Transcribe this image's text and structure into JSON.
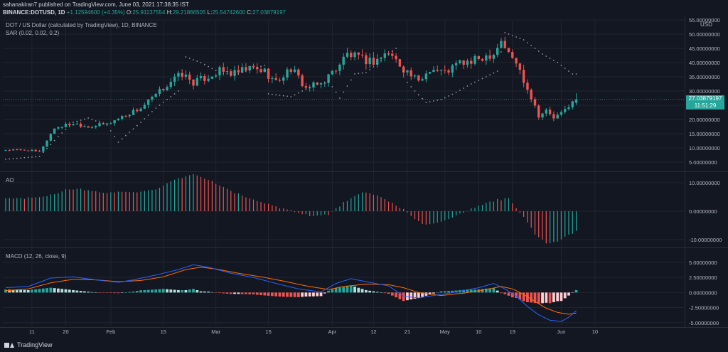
{
  "header": {
    "author_line": "sahanakiran7 published on TradingView.com, June 03, 2021 17:38:35 IST",
    "symbol": "BINANCE:DOTUSD, 1D",
    "change": "+1.12594600 (+4.35%)",
    "open_label": "O:",
    "open": "25.91137554",
    "high_label": "H:",
    "high": "29.21866505",
    "low_label": "L:",
    "low": "25.54742600",
    "close_label": "C:",
    "close": "27.03879197"
  },
  "panes": {
    "main_title": "DOT / US Dollar (calculated by TradingView), 1D, BINANCE",
    "sar_label": "SAR (0.02, 0.02, 0.2)",
    "ao_label": "AO",
    "macd_label": "MACD (12, 26, close, 9)",
    "currency": "USD"
  },
  "last_price": {
    "value": "27.03879197",
    "countdown": "11:51:29"
  },
  "brand": "TradingView",
  "colors": {
    "up": "#26a69a",
    "down": "#ef5350",
    "macd": "#2962ff",
    "signal": "#ff6d00",
    "background": "#131722",
    "grid": "#1f2430"
  },
  "chart_data": [
    {
      "type": "candlestick",
      "title": "DOT / US Dollar (calculated by TradingView), 1D, BINANCE",
      "ylim": [
        2.5,
        55
      ],
      "y_ticks": [
        5,
        10,
        15,
        20,
        25,
        30,
        35,
        40,
        45,
        50,
        55
      ],
      "y_tick_labels": [
        "5.00000000",
        "10.00000000",
        "15.00000000",
        "20.00000000",
        "25.00000000",
        "30.00000000",
        "35.00000000",
        "40.00000000",
        "45.00000000",
        "50.00000000",
        "55.00000000"
      ],
      "x_tick_labels": [
        "11",
        "20",
        "Feb",
        "15",
        "Mar",
        "15",
        "Apr",
        "12",
        "21",
        "May",
        "10",
        "19",
        "Jun",
        "10"
      ],
      "x_tick_days": [
        7,
        16,
        28,
        42,
        56,
        70,
        87,
        98,
        107,
        117,
        126,
        135,
        148,
        157
      ],
      "close_path": [
        [
          0,
          9.3
        ],
        [
          6,
          9.2
        ],
        [
          9,
          8.5
        ],
        [
          13,
          17
        ],
        [
          18,
          18.7
        ],
        [
          22,
          17.5
        ],
        [
          27,
          18.4
        ],
        [
          31,
          21
        ],
        [
          36,
          24
        ],
        [
          40,
          28.5
        ],
        [
          44,
          33.5
        ],
        [
          47,
          36
        ],
        [
          50,
          33
        ],
        [
          53,
          34.5
        ],
        [
          57,
          37
        ],
        [
          61,
          36
        ],
        [
          65,
          38
        ],
        [
          69,
          37
        ],
        [
          72,
          33
        ],
        [
          76,
          38
        ],
        [
          80,
          31
        ],
        [
          84,
          32.5
        ],
        [
          88,
          38
        ],
        [
          91,
          43
        ],
        [
          95,
          41
        ],
        [
          98,
          40.5
        ],
        [
          102,
          43.5
        ],
        [
          106,
          38
        ],
        [
          110,
          33
        ],
        [
          113,
          38
        ],
        [
          117,
          36.5
        ],
        [
          121,
          40
        ],
        [
          124,
          40
        ],
        [
          127,
          42
        ],
        [
          130,
          43.5
        ],
        [
          132,
          48
        ],
        [
          134,
          43
        ],
        [
          136,
          40
        ],
        [
          138,
          34
        ],
        [
          140,
          28
        ],
        [
          142,
          21.5
        ],
        [
          144,
          23
        ],
        [
          146,
          20.5
        ],
        [
          148,
          22
        ],
        [
          150,
          25
        ],
        [
          152,
          27.04
        ]
      ],
      "sar_path": [
        [
          0,
          6
        ],
        [
          9,
          7
        ],
        [
          14,
          14
        ],
        [
          18,
          19
        ],
        [
          22,
          20.5
        ],
        [
          27,
          18
        ],
        [
          30,
          12
        ],
        [
          36,
          19
        ],
        [
          40,
          24
        ],
        [
          46,
          30
        ],
        [
          48,
          42
        ],
        [
          52,
          40
        ],
        [
          57,
          36.5
        ],
        [
          61,
          35.5
        ],
        [
          66,
          38
        ],
        [
          69,
          39
        ],
        [
          70,
          29
        ],
        [
          76,
          28
        ],
        [
          82,
          32
        ],
        [
          86,
          33.5
        ],
        [
          89,
          27.5
        ],
        [
          93,
          36
        ],
        [
          96,
          36.5
        ],
        [
          98,
          38.5
        ],
        [
          104,
          45
        ],
        [
          107,
          33
        ],
        [
          109,
          30
        ],
        [
          112,
          26
        ],
        [
          116,
          27
        ],
        [
          120,
          29.5
        ],
        [
          124,
          32.5
        ],
        [
          128,
          35
        ],
        [
          131,
          37
        ],
        [
          133,
          50.5
        ],
        [
          138,
          48
        ],
        [
          143,
          43
        ],
        [
          147,
          40
        ],
        [
          151,
          36
        ]
      ],
      "last_price_label": "27.03879197",
      "countdown": "11:51:29"
    },
    {
      "type": "bar",
      "title": "AO",
      "ylim": [
        -12,
        13
      ],
      "y_ticks": [
        10,
        0,
        -10
      ],
      "y_tick_labels": [
        "10.00000000",
        "0.00000000",
        "-10.00000000"
      ],
      "path": [
        [
          0,
          4.5
        ],
        [
          8,
          4.7
        ],
        [
          12,
          5.8
        ],
        [
          16,
          7.5
        ],
        [
          20,
          7.7
        ],
        [
          24,
          6.8
        ],
        [
          28,
          6.5
        ],
        [
          32,
          7
        ],
        [
          36,
          6.8
        ],
        [
          40,
          7.4
        ],
        [
          45,
          11
        ],
        [
          50,
          13
        ],
        [
          55,
          10.5
        ],
        [
          60,
          7
        ],
        [
          66,
          4
        ],
        [
          71,
          2
        ],
        [
          76,
          0.2
        ],
        [
          82,
          -1.8
        ],
        [
          86,
          -1.2
        ],
        [
          90,
          3
        ],
        [
          95,
          6.5
        ],
        [
          98,
          6
        ],
        [
          103,
          3
        ],
        [
          106,
          0.5
        ],
        [
          109,
          -3
        ],
        [
          112,
          -5
        ],
        [
          116,
          -3.5
        ],
        [
          119,
          -2
        ],
        [
          123,
          0.2
        ],
        [
          127,
          2.3
        ],
        [
          131,
          4
        ],
        [
          134,
          4.4
        ],
        [
          136,
          1
        ],
        [
          138,
          -2
        ],
        [
          141,
          -8
        ],
        [
          144,
          -11.2
        ],
        [
          147,
          -10.8
        ],
        [
          150,
          -8.5
        ],
        [
          152,
          -7
        ]
      ]
    },
    {
      "type": "line",
      "title": "MACD (12, 26, close, 9)",
      "ylim": [
        -5.5,
        7
      ],
      "y_ticks": [
        5,
        2.5,
        0,
        -2.5,
        -5
      ],
      "y_tick_labels": [
        "5.00000000",
        "2.50000000",
        "0.00000000",
        "-2.50000000",
        "-5.00000000"
      ],
      "series": [
        {
          "path": [
            [
              0,
              0.8
            ],
            [
              6,
              1
            ],
            [
              12,
              2.4
            ],
            [
              18,
              2.6
            ],
            [
              24,
              2.1
            ],
            [
              30,
              1.7
            ],
            [
              34,
              2.1
            ],
            [
              40,
              2.9
            ],
            [
              46,
              3.8
            ],
            [
              50,
              4.6
            ],
            [
              54,
              4.2
            ],
            [
              60,
              3.2
            ],
            [
              66,
              2.5
            ],
            [
              72,
              1.5
            ],
            [
              78,
              0.6
            ],
            [
              84,
              0.1
            ],
            [
              88,
              1.5
            ],
            [
              92,
              2.3
            ],
            [
              96,
              1.8
            ],
            [
              102,
              1.1
            ],
            [
              106,
              -0.6
            ],
            [
              110,
              -0.9
            ],
            [
              114,
              -0.5
            ],
            [
              120,
              0.1
            ],
            [
              126,
              0.8
            ],
            [
              130,
              1.5
            ],
            [
              133,
              0.6
            ],
            [
              136,
              -0.6
            ],
            [
              139,
              -2.3
            ],
            [
              142,
              -3.7
            ],
            [
              145,
              -4.6
            ],
            [
              148,
              -4.8
            ],
            [
              150,
              -4.1
            ],
            [
              152,
              -3
            ]
          ]
        },
        {
          "path": [
            [
              0,
              0.3
            ],
            [
              6,
              0.6
            ],
            [
              12,
              1.6
            ],
            [
              18,
              2.2
            ],
            [
              24,
              2.1
            ],
            [
              30,
              1.8
            ],
            [
              36,
              2
            ],
            [
              42,
              2.6
            ],
            [
              48,
              3.8
            ],
            [
              52,
              4.2
            ],
            [
              56,
              3.9
            ],
            [
              62,
              3.2
            ],
            [
              68,
              2.6
            ],
            [
              74,
              1.9
            ],
            [
              80,
              1.1
            ],
            [
              86,
              0.5
            ],
            [
              90,
              1
            ],
            [
              96,
              1.4
            ],
            [
              102,
              1.3
            ],
            [
              106,
              0.8
            ],
            [
              110,
              0
            ],
            [
              116,
              -0.5
            ],
            [
              122,
              -0.1
            ],
            [
              128,
              0.5
            ],
            [
              132,
              1
            ],
            [
              135,
              0.6
            ],
            [
              138,
              -0.3
            ],
            [
              141,
              -1.5
            ],
            [
              144,
              -2.6
            ],
            [
              147,
              -3.3
            ],
            [
              150,
              -3.6
            ],
            [
              152,
              -3.4
            ]
          ]
        }
      ]
    }
  ]
}
